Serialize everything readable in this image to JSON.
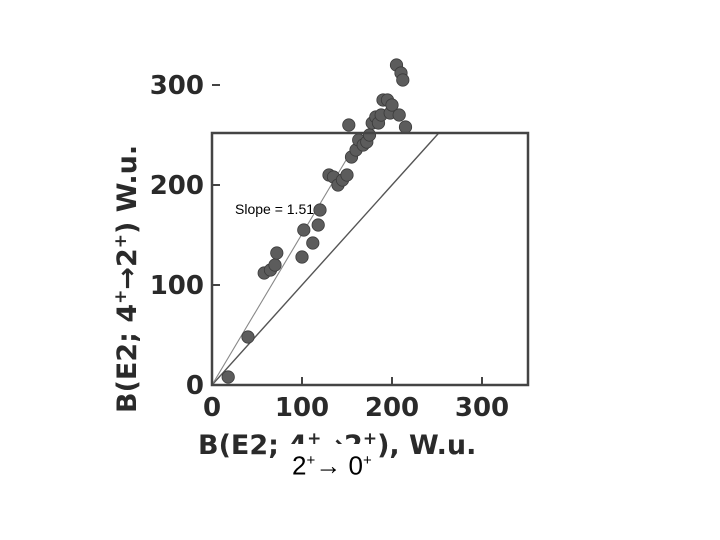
{
  "chart_data": {
    "type": "scatter",
    "xlabel": "B(E2; 4+→2+), W.u.",
    "ylabel": "B(E2; 4+→2+) W.u.",
    "xlim": [
      0,
      350
    ],
    "ylim": [
      0,
      350
    ],
    "xticks": [
      "0",
      "100",
      "200",
      "300"
    ],
    "yticks": [
      "0",
      "100",
      "200",
      "300"
    ],
    "grid": false,
    "annotation": "Slope = 1.51",
    "overlay_label": {
      "from": "2",
      "from_sup": "+",
      "arrow": "→",
      "to": "0",
      "to_sup": "+"
    },
    "lines": [
      {
        "slope": 1.0
      },
      {
        "slope": 1.51
      }
    ],
    "points": [
      [
        18,
        8
      ],
      [
        40,
        48
      ],
      [
        58,
        112
      ],
      [
        65,
        115
      ],
      [
        70,
        120
      ],
      [
        72,
        132
      ],
      [
        100,
        128
      ],
      [
        102,
        155
      ],
      [
        112,
        142
      ],
      [
        118,
        160
      ],
      [
        120,
        175
      ],
      [
        130,
        210
      ],
      [
        135,
        208
      ],
      [
        140,
        200
      ],
      [
        145,
        205
      ],
      [
        150,
        210
      ],
      [
        152,
        260
      ],
      [
        155,
        228
      ],
      [
        160,
        235
      ],
      [
        163,
        245
      ],
      [
        168,
        240
      ],
      [
        172,
        243
      ],
      [
        175,
        250
      ],
      [
        178,
        262
      ],
      [
        182,
        268
      ],
      [
        185,
        262
      ],
      [
        188,
        270
      ],
      [
        190,
        285
      ],
      [
        195,
        285
      ],
      [
        198,
        272
      ],
      [
        200,
        280
      ],
      [
        205,
        320
      ],
      [
        208,
        270
      ],
      [
        210,
        312
      ],
      [
        212,
        305
      ],
      [
        215,
        258
      ]
    ]
  }
}
